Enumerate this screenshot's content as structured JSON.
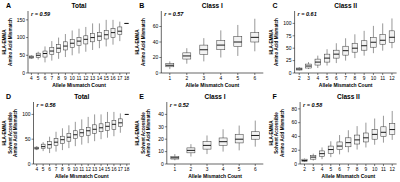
{
  "chart_data": [
    {
      "type": "box",
      "panel_label": "A",
      "title": "Total",
      "annotation": "r = 0.59",
      "x_label": "Allele Mismatch Count",
      "y_label": [
        "HLA-EMMA",
        "Amino Acid Mismatch"
      ],
      "color": "#333333",
      "categories": [
        4,
        5,
        6,
        7,
        8,
        9,
        10,
        11,
        12,
        13,
        14,
        15,
        16,
        17,
        18
      ],
      "values": [
        [
          40,
          42,
          45,
          48,
          50
        ],
        [
          38,
          44,
          50,
          56,
          60
        ],
        [
          30,
          45,
          55,
          62,
          75
        ],
        [
          35,
          52,
          62,
          72,
          90
        ],
        [
          40,
          58,
          70,
          80,
          100
        ],
        [
          45,
          65,
          76,
          88,
          110
        ],
        [
          50,
          72,
          84,
          95,
          120
        ],
        [
          55,
          78,
          90,
          100,
          125
        ],
        [
          60,
          82,
          95,
          105,
          130
        ],
        [
          65,
          88,
          100,
          112,
          140
        ],
        [
          70,
          92,
          104,
          115,
          140
        ],
        [
          75,
          96,
          108,
          120,
          150
        ],
        [
          80,
          100,
          114,
          125,
          150
        ],
        [
          90,
          108,
          118,
          130,
          145
        ],
        [
          140,
          140,
          140,
          140,
          140
        ]
      ],
      "ylim": [
        0,
        175
      ],
      "yticks": [
        0,
        50,
        100,
        150
      ]
    },
    {
      "type": "box",
      "panel_label": "B",
      "title": "Class I",
      "annotation": "r = 0.57",
      "x_label": "Allele Mismatch Count",
      "y_label": [
        "HLA-EMMA",
        "Amino Acid Mismatch"
      ],
      "color": "#333333",
      "categories": [
        1,
        2,
        3,
        4,
        5,
        6
      ],
      "values": [
        [
          5,
          8,
          10,
          12,
          15
        ],
        [
          12,
          18,
          22,
          26,
          32
        ],
        [
          15,
          24,
          30,
          36,
          45
        ],
        [
          20,
          30,
          36,
          42,
          55
        ],
        [
          22,
          34,
          40,
          47,
          62
        ],
        [
          28,
          40,
          46,
          52,
          70
        ]
      ],
      "ylim": [
        0,
        80
      ],
      "yticks": [
        0,
        20,
        40,
        60
      ]
    },
    {
      "type": "box",
      "panel_label": "C",
      "title": "Class II",
      "annotation": "r = 0.61",
      "x_label": "Allele Mismatch Count",
      "y_label": [
        "HLA-EMMA",
        "Amino Acid Mismatch"
      ],
      "color": "#333333",
      "categories": [
        2,
        3,
        4,
        5,
        6,
        7,
        8,
        9,
        10,
        11,
        12
      ],
      "values": [
        [
          5,
          6,
          8,
          10,
          12
        ],
        [
          8,
          10,
          14,
          18,
          22
        ],
        [
          10,
          16,
          22,
          28,
          35
        ],
        [
          15,
          22,
          30,
          38,
          48
        ],
        [
          20,
          30,
          38,
          46,
          60
        ],
        [
          25,
          36,
          45,
          54,
          70
        ],
        [
          30,
          42,
          50,
          60,
          78
        ],
        [
          35,
          46,
          55,
          65,
          85
        ],
        [
          40,
          52,
          62,
          72,
          95
        ],
        [
          45,
          58,
          66,
          78,
          100
        ],
        [
          50,
          62,
          72,
          85,
          110
        ]
      ],
      "ylim": [
        0,
        125
      ],
      "yticks": [
        0,
        25,
        50,
        75,
        100
      ]
    },
    {
      "type": "box",
      "panel_label": "D",
      "title": "Total",
      "annotation": "r = 0.56",
      "x_label": "Allele Mismatch Count",
      "y_label": [
        "HLA-EMMA",
        "Solvent Accessible",
        "Amino Acid Mismatch"
      ],
      "color": "#333333",
      "categories": [
        4,
        5,
        6,
        7,
        8,
        9,
        10,
        11,
        12,
        13,
        14,
        15,
        16,
        17,
        18
      ],
      "values": [
        [
          28,
          30,
          32,
          34,
          36
        ],
        [
          26,
          31,
          35,
          40,
          44
        ],
        [
          22,
          32,
          39,
          45,
          55
        ],
        [
          25,
          37,
          44,
          51,
          65
        ],
        [
          28,
          41,
          49,
          56,
          72
        ],
        [
          32,
          46,
          54,
          62,
          78
        ],
        [
          36,
          51,
          59,
          67,
          85
        ],
        [
          39,
          55,
          63,
          70,
          90
        ],
        [
          42,
          58,
          67,
          74,
          95
        ],
        [
          46,
          62,
          70,
          79,
          100
        ],
        [
          50,
          65,
          73,
          81,
          100
        ],
        [
          53,
          68,
          76,
          84,
          105
        ],
        [
          56,
          70,
          80,
          88,
          105
        ],
        [
          63,
          76,
          83,
          91,
          102
        ],
        [
          100,
          100,
          100,
          100,
          100
        ]
      ],
      "ylim": [
        0,
        125
      ],
      "yticks": [
        0,
        50,
        100
      ]
    },
    {
      "type": "box",
      "panel_label": "E",
      "title": "Class I",
      "annotation": "r = 0.52",
      "x_label": "Allele Mismatch Count",
      "y_label": [
        "HLA-EMMA",
        "Solvent Accessible",
        "Amino Acid Mismatch"
      ],
      "color": "#333333",
      "categories": [
        1,
        2,
        3,
        4,
        5,
        6
      ],
      "values": [
        [
          3,
          4,
          5,
          6,
          8
        ],
        [
          6,
          9,
          11,
          13,
          16
        ],
        [
          8,
          12,
          15,
          18,
          23
        ],
        [
          10,
          15,
          18,
          21,
          28
        ],
        [
          11,
          17,
          20,
          24,
          31
        ],
        [
          14,
          20,
          23,
          26,
          35
        ]
      ],
      "ylim": [
        0,
        50
      ],
      "yticks": [
        0,
        10,
        20,
        30,
        40
      ]
    },
    {
      "type": "box",
      "panel_label": "F",
      "title": "Class II",
      "annotation": "r = 0.58",
      "x_label": "Allele Mismatch Count",
      "y_label": [
        "HLA-EMMA",
        "Solvent Accessible",
        "Amino Acid Mismatch"
      ],
      "color": "#333333",
      "categories": [
        2,
        3,
        4,
        5,
        6,
        7,
        8,
        9,
        10,
        11,
        12
      ],
      "values": [
        [
          3,
          4,
          5,
          7,
          8
        ],
        [
          5,
          7,
          10,
          12,
          15
        ],
        [
          7,
          11,
          15,
          19,
          24
        ],
        [
          10,
          15,
          21,
          26,
          33
        ],
        [
          14,
          21,
          26,
          32,
          42
        ],
        [
          17,
          25,
          31,
          38,
          49
        ],
        [
          21,
          29,
          35,
          42,
          55
        ],
        [
          24,
          32,
          38,
          45,
          60
        ],
        [
          28,
          36,
          43,
          50,
          66
        ],
        [
          31,
          40,
          46,
          54,
          70
        ],
        [
          35,
          43,
          50,
          59,
          77
        ]
      ],
      "ylim": [
        0,
        90
      ],
      "yticks": [
        0,
        20,
        40,
        60,
        80
      ]
    }
  ]
}
